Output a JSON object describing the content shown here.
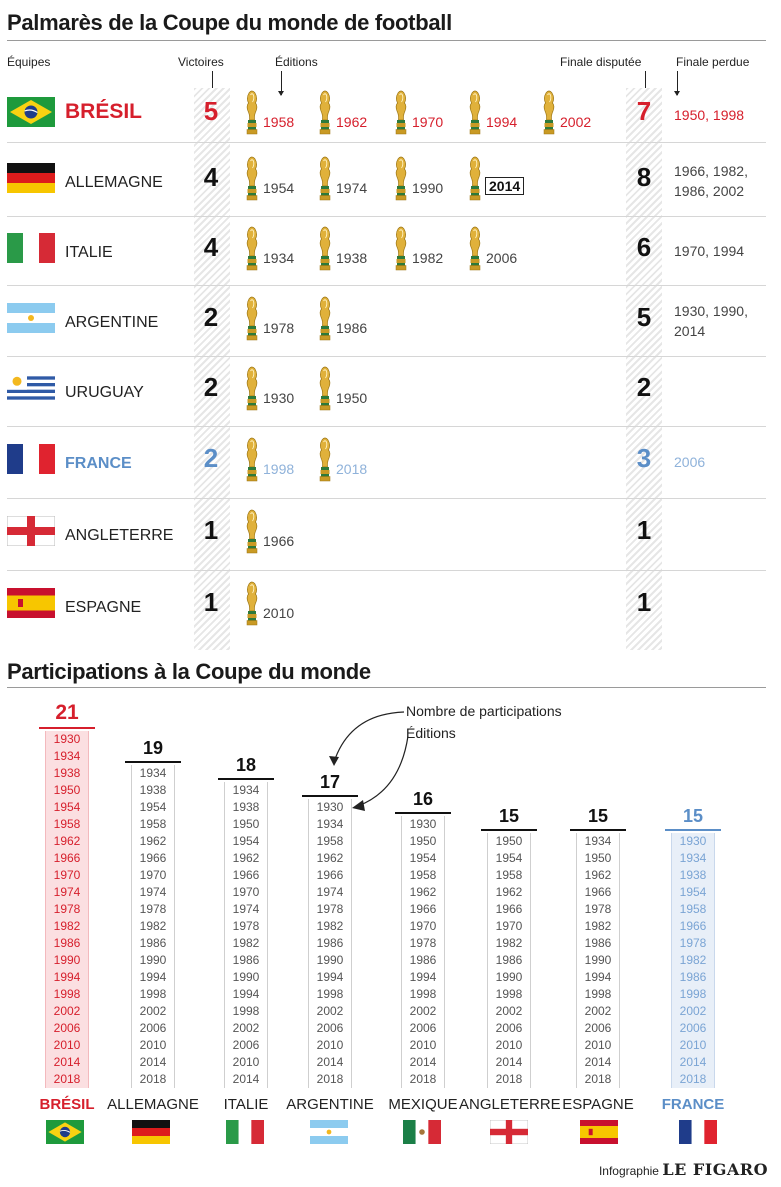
{
  "header": {
    "title": "Palmarès de la Coupe du monde de football",
    "col_teams": "Équipes",
    "col_wins": "Victoires",
    "col_editions": "Éditions",
    "col_finals": "Finale disputée",
    "col_lost": "Finale perdue"
  },
  "palmares": [
    {
      "name": "BRÉSIL",
      "wins": "5",
      "years": [
        "1958",
        "1962",
        "1970",
        "1994",
        "2002"
      ],
      "finals": "7",
      "lost": "1950, 1998",
      "theme": "red",
      "flag": "brazil-flag"
    },
    {
      "name": "ALLEMAGNE",
      "wins": "4",
      "years": [
        "1954",
        "1974",
        "1990",
        "2014"
      ],
      "finals": "8",
      "lost": "1966, 1982, 1986, 2002",
      "theme": "",
      "flag": "germany-flag"
    },
    {
      "name": "ITALIE",
      "wins": "4",
      "years": [
        "1934",
        "1938",
        "1982",
        "2006"
      ],
      "finals": "6",
      "lost": "1970, 1994",
      "theme": "",
      "flag": "italy-flag"
    },
    {
      "name": "ARGENTINE",
      "wins": "2",
      "years": [
        "1978",
        "1986"
      ],
      "finals": "5",
      "lost": "1930, 1990, 2014",
      "theme": "",
      "flag": "argentina-flag"
    },
    {
      "name": "URUGUAY",
      "wins": "2",
      "years": [
        "1930",
        "1950"
      ],
      "finals": "2",
      "lost": "",
      "theme": "",
      "flag": "uruguay-flag"
    },
    {
      "name": "FRANCE",
      "wins": "2",
      "years": [
        "1998",
        "2018"
      ],
      "finals": "3",
      "lost": "2006",
      "theme": "blue",
      "flag": "france-flag"
    },
    {
      "name": "ANGLETERRE",
      "wins": "1",
      "years": [
        "1966"
      ],
      "finals": "1",
      "lost": "",
      "theme": "",
      "flag": "england-flag"
    },
    {
      "name": "ESPAGNE",
      "wins": "1",
      "years": [
        "2010"
      ],
      "finals": "1",
      "lost": "",
      "theme": "",
      "flag": "spain-flag"
    }
  ],
  "participations": {
    "title": "Participations à la Coupe du monde",
    "annotation_count": "Nombre de participations",
    "annotation_editions": "Éditions"
  },
  "chart_data": {
    "type": "table",
    "title": "Participations à la Coupe du monde",
    "series": [
      {
        "name": "BRÉSIL",
        "count": 21,
        "color": "#d61f2c",
        "years": [
          "1930",
          "1934",
          "1938",
          "1950",
          "1954",
          "1958",
          "1962",
          "1966",
          "1970",
          "1974",
          "1978",
          "1982",
          "1986",
          "1990",
          "1994",
          "1998",
          "2002",
          "2006",
          "2010",
          "2014",
          "2018"
        ]
      },
      {
        "name": "ALLEMAGNE",
        "count": 19,
        "color": "#111111",
        "years": [
          "1934",
          "1938",
          "1954",
          "1958",
          "1962",
          "1966",
          "1970",
          "1974",
          "1978",
          "1982",
          "1986",
          "1990",
          "1994",
          "1998",
          "2002",
          "2006",
          "2010",
          "2014",
          "2018"
        ]
      },
      {
        "name": "ITALIE",
        "count": 18,
        "color": "#111111",
        "years": [
          "1934",
          "1938",
          "1950",
          "1954",
          "1962",
          "1966",
          "1970",
          "1974",
          "1978",
          "1982",
          "1986",
          "1990",
          "1994",
          "1998",
          "2002",
          "2006",
          "2010",
          "2014"
        ]
      },
      {
        "name": "ARGENTINE",
        "count": 17,
        "color": "#111111",
        "years": [
          "1930",
          "1934",
          "1958",
          "1962",
          "1966",
          "1974",
          "1978",
          "1982",
          "1986",
          "1990",
          "1994",
          "1998",
          "2002",
          "2006",
          "2010",
          "2014",
          "2018"
        ]
      },
      {
        "name": "MEXIQUE",
        "count": 16,
        "color": "#111111",
        "years": [
          "1930",
          "1950",
          "1954",
          "1958",
          "1962",
          "1966",
          "1970",
          "1978",
          "1986",
          "1994",
          "1998",
          "2002",
          "2006",
          "2010",
          "2014",
          "2018"
        ]
      },
      {
        "name": "ANGLETERRE",
        "count": 15,
        "color": "#111111",
        "years": [
          "1950",
          "1954",
          "1958",
          "1962",
          "1966",
          "1970",
          "1982",
          "1986",
          "1990",
          "1998",
          "2002",
          "2006",
          "2010",
          "2014",
          "2018"
        ]
      },
      {
        "name": "ESPAGNE",
        "count": 15,
        "color": "#111111",
        "years": [
          "1934",
          "1950",
          "1962",
          "1966",
          "1978",
          "1982",
          "1986",
          "1990",
          "1994",
          "1998",
          "2002",
          "2006",
          "2010",
          "2014",
          "2018"
        ]
      },
      {
        "name": "FRANCE",
        "count": 15,
        "color": "#5b8ec7",
        "years": [
          "1930",
          "1934",
          "1938",
          "1954",
          "1958",
          "1966",
          "1978",
          "1982",
          "1986",
          "1998",
          "2002",
          "2006",
          "2010",
          "2014",
          "2018"
        ]
      }
    ]
  },
  "credit": {
    "prefix": "Infographie",
    "brand": "LE FIGARO"
  }
}
